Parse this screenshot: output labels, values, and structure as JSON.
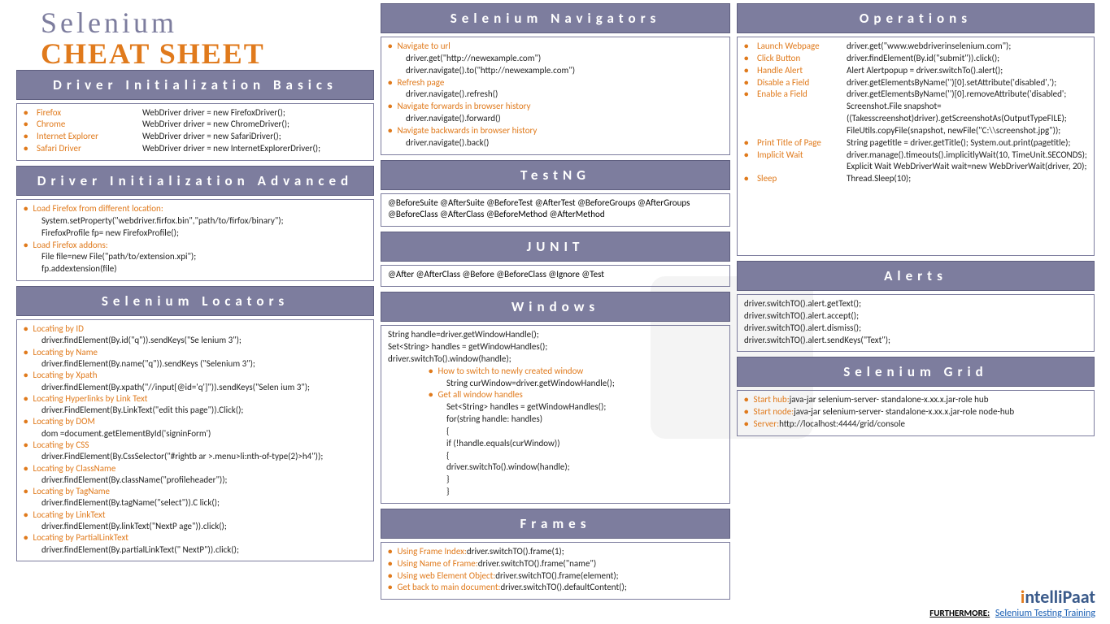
{
  "title": {
    "line1": "Selenium",
    "line2": "CHEAT SHEET"
  },
  "colors": {
    "header_bg": "#7d7d9e",
    "header_text": "#ffffff",
    "accent": "#e07a1c",
    "box_border": "#7d7d9e",
    "body_text": "#222222"
  },
  "driver_basics": {
    "title": "Driver Initialization Basics",
    "rows": [
      {
        "label": "Firefox",
        "code": "WebDriver driver = new FirefoxDriver();"
      },
      {
        "label": "Chrome",
        "code": "WebDriver driver = new ChromeDriver();"
      },
      {
        "label": "Internet Explorer",
        "code": "WebDriver driver = new SafariDriver();"
      },
      {
        "label": "Safari Driver",
        "code": "WebDriver driver = new InternetExplorerDriver();"
      }
    ]
  },
  "driver_advanced": {
    "title": "Driver Initialization Advanced",
    "items": [
      {
        "label": "Load Firefox from different location:",
        "lines": [
          "System.setProperty(\"webdriver.firfox.bin\",\"path/to/firfox/binary\");",
          "FirefoxProfile fp= new FirefoxProfile();"
        ]
      },
      {
        "label": "Load Firefox addons:",
        "lines": [
          "File file=new File(\"path/to/extension.xpi\");",
          "fp.addextension(file)"
        ]
      }
    ]
  },
  "locators": {
    "title": "Selenium Locators",
    "items": [
      {
        "label": "Locating by ID",
        "lines": [
          "driver.findElement(By.id(\"q\")).sendKeys(\"Se lenium 3\");"
        ]
      },
      {
        "label": "Locating by Name",
        "lines": [
          "driver.findElement(By.name(\"q\")).sendKeys (\"Selenium 3\");"
        ]
      },
      {
        "label": "Locating by Xpath",
        "lines": [
          "driver.findElement(By.xpath(\"//input[@id='q']\")).sendKeys(\"Selen ium 3\");"
        ]
      },
      {
        "label": "Locating Hyperlinks by Link Text",
        "lines": [
          "driver.FindElement(By.LinkText(\"edit this page\")).Click();"
        ]
      },
      {
        "label": "Locating by DOM",
        "lines": [
          "dom =document.getElementById('signinForm')"
        ]
      },
      {
        "label": "Locating by CSS",
        "lines": [
          "driver.FindElement(By.CssSelector(\"#rightb ar >.menu>li:nth-of-type(2)>h4\"));"
        ]
      },
      {
        "label": "Locating by ClassName",
        "lines": [
          "driver.findElement(By.className(\"profileheader\"));"
        ]
      },
      {
        "label": "Locating by TagName",
        "lines": [
          "driver.findElement(By.tagName(\"select\")).C lick();"
        ]
      },
      {
        "label": "Locating by LinkText",
        "lines": [
          "driver.findElement(By.linkText(\"NextP age\")).click();"
        ]
      },
      {
        "label": "Locating by PartialLinkText",
        "lines": [
          "driver.findElement(By.partialLinkText(\" NextP\")).click();"
        ]
      }
    ]
  },
  "navigators": {
    "title": "Selenium Navigators",
    "items": [
      {
        "label": "Navigate to url",
        "lines": [
          "driver.get(\"http://newexample.com\")",
          "driver.navigate().to(\"http://newexample.com\")"
        ]
      },
      {
        "label": "Refresh page",
        "lines": [
          "driver.navigate().refresh()"
        ]
      },
      {
        "label": "Navigate forwards in browser history",
        "lines": [
          "driver.navigate().forward()"
        ]
      },
      {
        "label": "Navigate backwards in browser history",
        "lines": [
          "driver.navigate().back()"
        ]
      }
    ]
  },
  "testng": {
    "title": "TestNG",
    "text": "@BeforeSuite @AfterSuite @BeforeTest @AfterTest @BeforeGroups @AfterGroups @BeforeClass @AfterClass @BeforeMethod @AfterMethod"
  },
  "junit": {
    "title": "JUNIT",
    "text": "@After @AfterClass @Before @BeforeClass @Ignore @Test"
  },
  "windows": {
    "title": "Windows",
    "pre": [
      "String handle=driver.getWindowHandle();",
      "Set<String> handles = getWindowHandles();",
      "driver.switchTo().window(handle);"
    ],
    "sub": [
      {
        "label": "How to switch to newly created window",
        "lines": [
          "String curWindow=driver.getWindowHandle();"
        ]
      },
      {
        "label": "Get all window handles",
        "lines": [
          "Set<String> handles = getWindowHandles();",
          "for(string handle: handles)",
          "{",
          "        if (!handle.equals(curWindow))",
          "        {",
          "        driver.switchTo().window(handle);",
          "        }",
          "}"
        ]
      }
    ]
  },
  "frames": {
    "title": "Frames",
    "rows": [
      {
        "label": "Using Frame Index:",
        "code": "driver.switchTO().frame(1);"
      },
      {
        "label": "Using Name of Frame:",
        "code": "driver.switchTO().frame(\"name\")"
      },
      {
        "label": "Using web Element Object:",
        "code": "driver.switchTO().frame(element);"
      },
      {
        "label": "Get back to main document:",
        "code": "driver.switchTO().defaultContent();"
      }
    ]
  },
  "operations": {
    "title": "Operations",
    "rows": [
      {
        "label": "Launch Webpage",
        "code": "driver.get(\"www.webdriverinselenium.com\");"
      },
      {
        "label": "Click Button",
        "code": "driver.findElement(By.id(\"submit\")).click();"
      },
      {
        "label": "Handle Alert",
        "code": " Alert Alertpopup = driver.switchTo().alert();"
      },
      {
        "label": "Disable a Field",
        "code": " driver.getElementsByName('')[0].setAttribute('disabled',');"
      },
      {
        "label": "Enable a Field",
        "code": " driver.getElementsByName('')[0].removeAttribute('disabled'; Screenshot.File snapshot=((Takesscreenshot)driver).getScreenshotAs(OutputTypeFILE); FileUtils.copyFile(snapshot, newFile(\"C:\\\\screenshot.jpg\"));"
      },
      {
        "label": "Print Title of Page",
        "code": "String pagetitle = driver.getTitle(); System.out.print(pagetitle);"
      },
      {
        "label": "Implicit Wait",
        "code": "driver.manage().timeouts().implicitlyWait(10, TimeUnit.SECONDS); Explicit Wait WebDriverWait wait=new WebDriverWait(driver, 20);"
      },
      {
        "label": "Sleep",
        "code": "Thread.Sleep(10);"
      }
    ]
  },
  "alerts": {
    "title": "Alerts",
    "lines": [
      "driver.switchTO().alert.getText();",
      "driver.switchTO().alert.accept();",
      "driver.switchTO().alert.dismiss();",
      "driver.switchTO().alert.sendKeys(\"Text\");"
    ]
  },
  "grid": {
    "title": "Selenium Grid",
    "rows": [
      {
        "label": "Start hub:",
        "code": "java-jar selenium-server- standalone-x.xx.x.jar-role hub"
      },
      {
        "label": "Start node:",
        "code": "java-jar selenium-server- standalone-x.xx.x.jar-role node-hub"
      },
      {
        "label": "Server:",
        "code": "http://localhost:4444/grid/console"
      }
    ]
  },
  "footer": {
    "brand_accent": "i",
    "brand_rest": "ntelliPaat",
    "furthermore": "FURTHERMORE:",
    "link_text": "Selenium Testing Training"
  }
}
